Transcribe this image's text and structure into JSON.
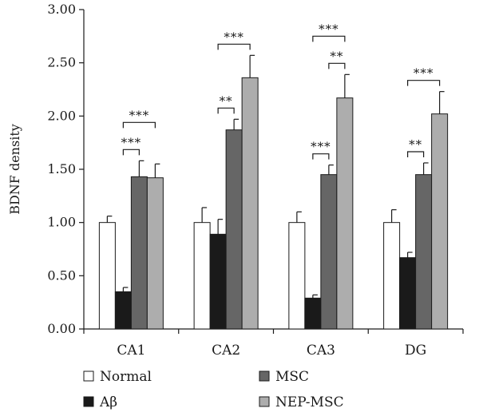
{
  "chart_data": {
    "type": "bar",
    "ylabel": "BDNF density",
    "xlabel": "",
    "ylim": [
      0,
      3.0
    ],
    "yticks": [
      "0.00",
      "0.50",
      "1.00",
      "1.50",
      "2.00",
      "2.50",
      "3.00"
    ],
    "categories": [
      "CA1",
      "CA2",
      "CA3",
      "DG"
    ],
    "series": [
      {
        "name": "Normal",
        "color": "#ffffff",
        "values": [
          1.0,
          1.0,
          1.0,
          1.0
        ],
        "errors": [
          0.06,
          0.14,
          0.1,
          0.12
        ]
      },
      {
        "name": "Aβ",
        "color": "#1a1a1a",
        "values": [
          0.35,
          0.89,
          0.29,
          0.67
        ],
        "errors": [
          0.04,
          0.14,
          0.03,
          0.05
        ]
      },
      {
        "name": "MSC",
        "color": "#666666",
        "values": [
          1.43,
          1.87,
          1.45,
          1.45
        ],
        "errors": [
          0.15,
          0.1,
          0.09,
          0.11
        ]
      },
      {
        "name": "NEP-MSC",
        "color": "#adadad",
        "values": [
          1.42,
          2.36,
          2.17,
          2.02
        ],
        "errors": [
          0.13,
          0.21,
          0.22,
          0.21
        ]
      }
    ],
    "significance": [
      {
        "category": "CA1",
        "from": "Aβ",
        "to": "MSC",
        "label": "***"
      },
      {
        "category": "CA1",
        "from": "Aβ",
        "to": "NEP-MSC",
        "label": "***"
      },
      {
        "category": "CA2",
        "from": "Aβ",
        "to": "MSC",
        "label": "**"
      },
      {
        "category": "CA2",
        "from": "Aβ",
        "to": "NEP-MSC",
        "label": "***"
      },
      {
        "category": "CA3",
        "from": "Aβ",
        "to": "MSC",
        "label": "***"
      },
      {
        "category": "CA3",
        "from": "MSC",
        "to": "NEP-MSC",
        "label": "**"
      },
      {
        "category": "CA3",
        "from": "Aβ",
        "to": "NEP-MSC",
        "label": "***"
      },
      {
        "category": "DG",
        "from": "Aβ",
        "to": "MSC",
        "label": "**"
      },
      {
        "category": "DG",
        "from": "Aβ",
        "to": "NEP-MSC",
        "label": "***"
      }
    ],
    "legend": {
      "placement": "bottom",
      "columns": 2
    }
  }
}
